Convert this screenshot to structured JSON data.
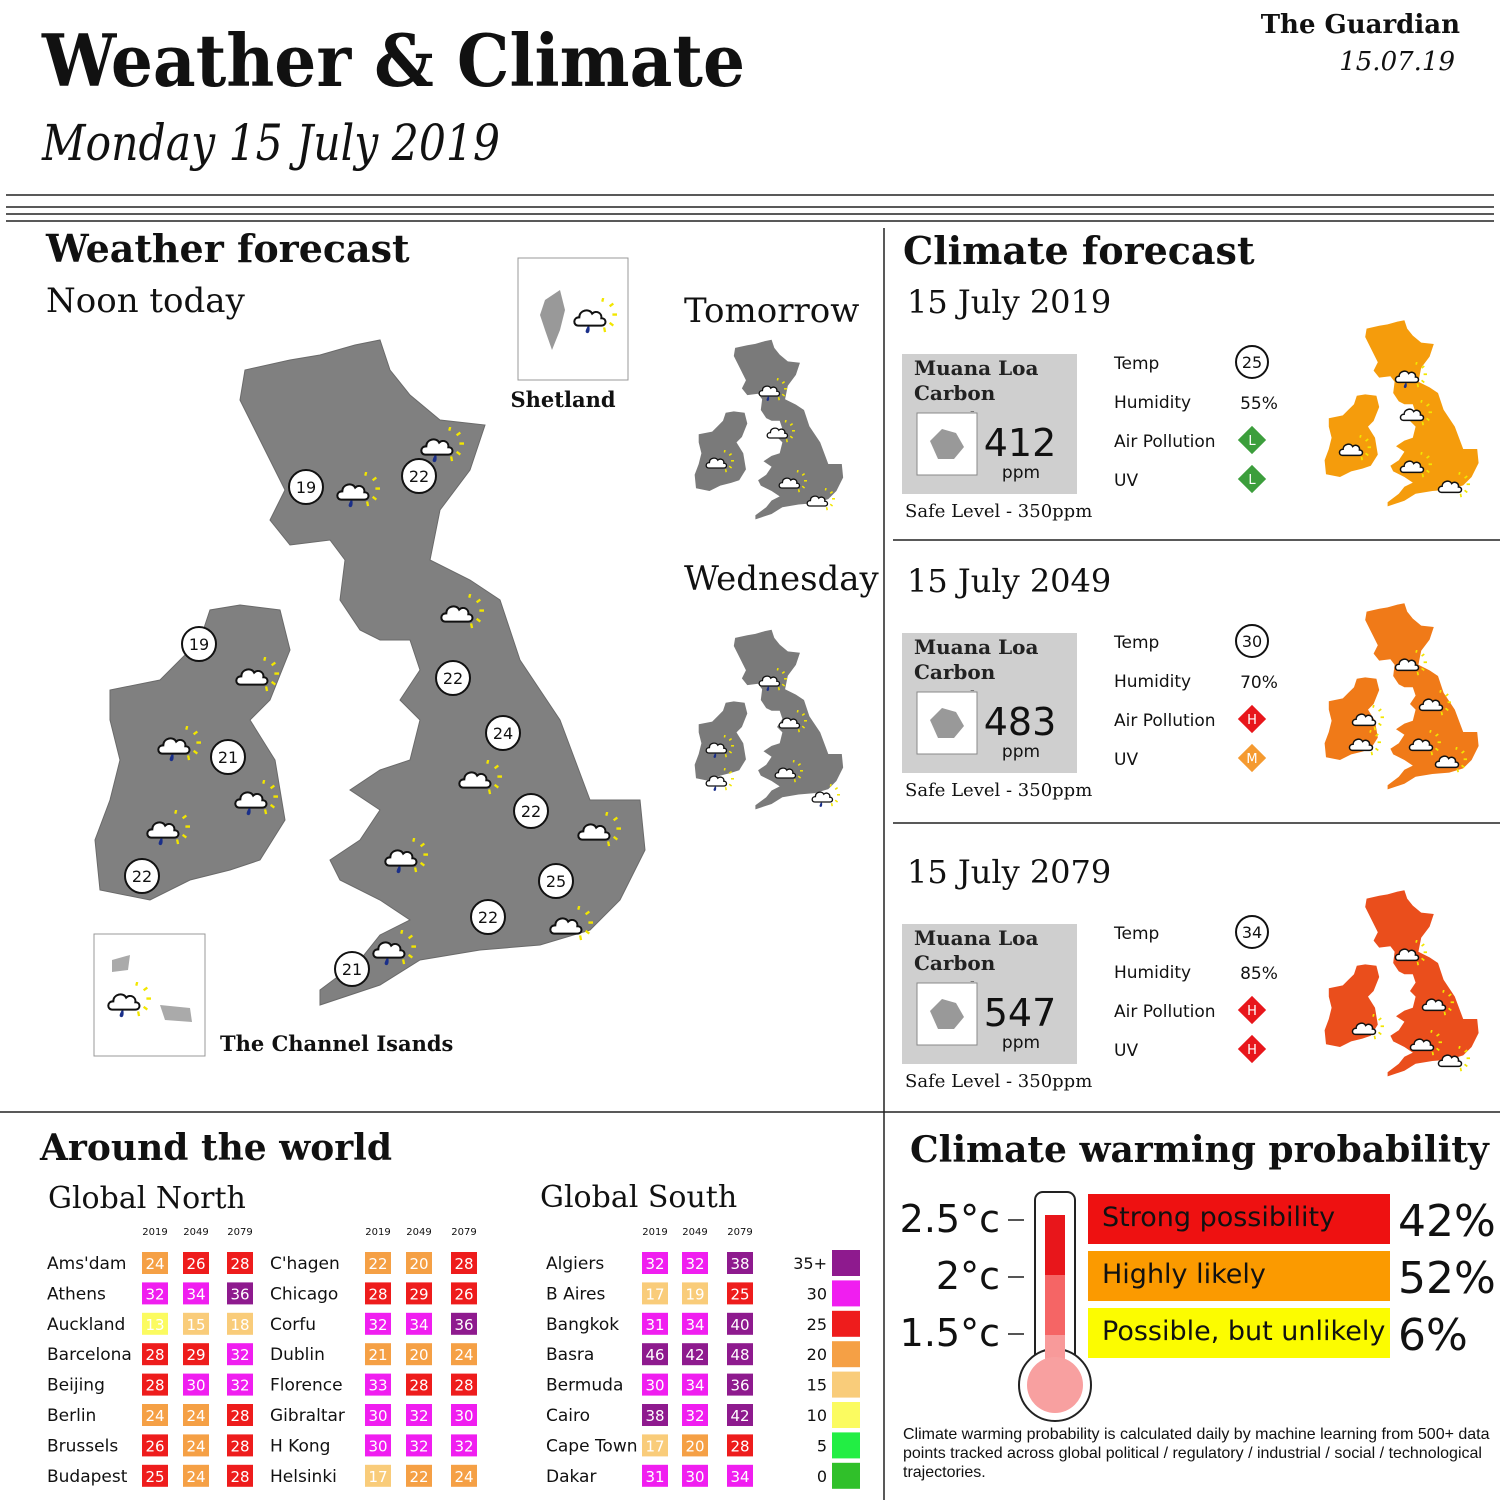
{
  "header": {
    "title": "Weather & Climate",
    "date": "Monday 15 July 2019",
    "brand": "The Guardian",
    "brand_date": "15.07.19"
  },
  "weather": {
    "title": "Weather  forecast",
    "subtitle": "Noon today",
    "tomorrow": "Tomorrow",
    "wednesday": "Wednesday",
    "shetland": "Shetland",
    "channel": "The Channel Isands",
    "temps": [
      19,
      22,
      19,
      22,
      24,
      21,
      22,
      22,
      25,
      22,
      21
    ]
  },
  "climate": {
    "title": "Climate forecast",
    "labels": {
      "carbon": "Muana Loa Carbon count",
      "unit": "ppm",
      "safe": "Safe Level - 350ppm",
      "temp": "Temp",
      "humidity": "Humidity",
      "air_pollution": "Air Pollution",
      "uv": "UV"
    },
    "level_colors": {
      "L": "#3c9e3c",
      "M": "#f59a30",
      "H": "#e8161b"
    },
    "entries": [
      {
        "date": "15 July 2019",
        "carbon": 412,
        "temp": 25,
        "humidity": "55%",
        "air_pollution": "L",
        "uv": "L",
        "map_color": "#f59c0c"
      },
      {
        "date": "15 July 2049",
        "carbon": 483,
        "temp": 30,
        "humidity": "70%",
        "air_pollution": "H",
        "uv": "M",
        "map_color": "#f07a18"
      },
      {
        "date": "15 July 2079",
        "carbon": 547,
        "temp": 34,
        "humidity": "85%",
        "air_pollution": "H",
        "uv": "H",
        "map_color": "#ea4e1c"
      }
    ]
  },
  "world": {
    "title": "Around the world",
    "north_title": "Global North",
    "south_title": "Global South",
    "years": [
      "2019",
      "2049",
      "2079"
    ],
    "north": [
      {
        "city": "Ams'dam",
        "values": [
          24,
          26,
          28
        ]
      },
      {
        "city": "Athens",
        "values": [
          32,
          34,
          36
        ]
      },
      {
        "city": "Auckland",
        "values": [
          13,
          15,
          18
        ]
      },
      {
        "city": "Barcelona",
        "values": [
          28,
          29,
          32
        ]
      },
      {
        "city": "Beijing",
        "values": [
          28,
          30,
          32
        ]
      },
      {
        "city": "Berlin",
        "values": [
          24,
          24,
          28
        ]
      },
      {
        "city": "Brussels",
        "values": [
          26,
          24,
          28
        ]
      },
      {
        "city": "Budapest",
        "values": [
          25,
          24,
          28
        ]
      },
      {
        "city": "C'hagen",
        "values": [
          22,
          20,
          28
        ]
      },
      {
        "city": "Chicago",
        "values": [
          28,
          29,
          26
        ]
      },
      {
        "city": "Corfu",
        "values": [
          32,
          34,
          36
        ]
      },
      {
        "city": "Dublin",
        "values": [
          21,
          20,
          24
        ]
      },
      {
        "city": "Florence",
        "values": [
          33,
          28,
          28
        ]
      },
      {
        "city": "Gibraltar",
        "values": [
          30,
          32,
          30
        ]
      },
      {
        "city": "H Kong",
        "values": [
          30,
          32,
          32
        ]
      },
      {
        "city": "Helsinki",
        "values": [
          17,
          22,
          24
        ]
      }
    ],
    "south": [
      {
        "city": "Algiers",
        "values": [
          32,
          32,
          38
        ]
      },
      {
        "city": "B Aires",
        "values": [
          17,
          19,
          25
        ]
      },
      {
        "city": "Bangkok",
        "values": [
          31,
          34,
          40
        ]
      },
      {
        "city": "Basra",
        "values": [
          46,
          42,
          48
        ]
      },
      {
        "city": "Bermuda",
        "values": [
          30,
          34,
          36
        ]
      },
      {
        "city": "Cairo",
        "values": [
          38,
          32,
          42
        ]
      },
      {
        "city": "Cape Town",
        "values": [
          17,
          20,
          28
        ]
      },
      {
        "city": "Dakar",
        "values": [
          31,
          30,
          34
        ]
      }
    ],
    "scale": [
      {
        "value": 35,
        "label": "35+",
        "color": "#8e1a8e"
      },
      {
        "value": 30,
        "color": "#f01ef0"
      },
      {
        "value": 25,
        "color": "#ee1c1c"
      },
      {
        "value": 20,
        "color": "#f5a045"
      },
      {
        "value": 15,
        "color": "#f9cc7a"
      },
      {
        "value": 10,
        "color": "#fbfb60"
      },
      {
        "value": 5,
        "color": "#22ee44"
      },
      {
        "value": 0,
        "color": "#30c02a"
      }
    ]
  },
  "warming": {
    "title": "Climate warming probability",
    "rows": [
      {
        "temp": "2.5°c",
        "label": "Strong possibility",
        "pct": "42%",
        "color": "#ee1111"
      },
      {
        "temp": "2°c",
        "label": "Highly likely",
        "pct": "52%",
        "color": "#fb9a00"
      },
      {
        "temp": "1.5°c",
        "label": "Possible, but unlikely",
        "pct": "6%",
        "color": "#fcfc00"
      }
    ],
    "note": "Climate warming probability is calculated daily by machine learning from 500+ data points tracked across global political / regulatory / industrial / social / technological trajectories."
  }
}
